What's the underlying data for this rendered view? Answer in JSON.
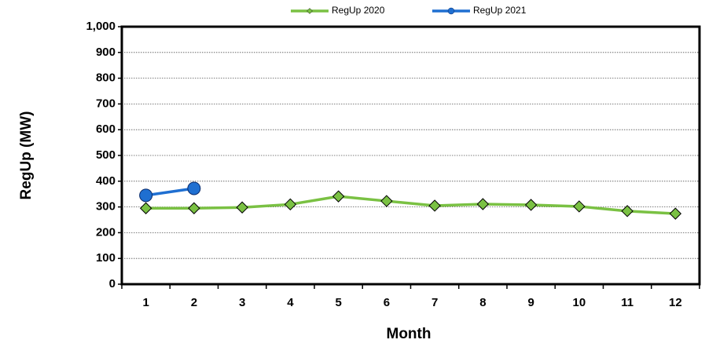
{
  "chart_data": {
    "type": "line",
    "x_label": "Month",
    "y_label": "RegUp (MW)",
    "categories": [
      "1",
      "2",
      "3",
      "4",
      "5",
      "6",
      "7",
      "8",
      "9",
      "10",
      "11",
      "12"
    ],
    "series": [
      {
        "name": "RegUp 2020",
        "color": "#7ac143",
        "marker": "diamond",
        "values": [
          295,
          295,
          298,
          310,
          341,
          323,
          305,
          311,
          308,
          302,
          284,
          274
        ]
      },
      {
        "name": "RegUp 2021",
        "color": "#1f6fd1",
        "marker": "circle",
        "values": [
          345,
          372,
          null,
          null,
          null,
          null,
          null,
          null,
          null,
          null,
          null,
          null
        ]
      }
    ],
    "ylim": [
      0,
      1000
    ],
    "yticks": [
      0,
      100,
      200,
      300,
      400,
      500,
      600,
      700,
      800,
      900,
      {
        "value": 1000,
        "label": "1,000"
      }
    ],
    "grid": true,
    "legend": "top"
  }
}
